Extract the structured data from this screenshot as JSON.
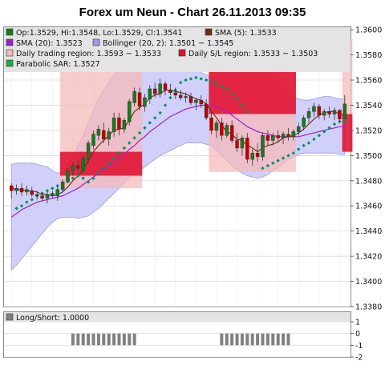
{
  "title": "Forex um Neun - Chart 26.11.2013 09:35",
  "colors": {
    "background": "#ffffff",
    "panel_bg": "#e4e4e4",
    "bollinger_fill": "#c8c8fa",
    "bollinger_line": "#9a9ae6",
    "trading_region": "#f7b8b8",
    "sl_region": "#e01030",
    "sma20": "#a020d0",
    "sma5": "#6a3010",
    "sar": "#009060",
    "bull": "#1a7a1a",
    "bear": "#c00000",
    "longshort": "#808080"
  },
  "legend": [
    {
      "text": "Op:1.3529, Hi:1.3548, Lo:1.3529, Cl:1.3541",
      "swatch": "#1a7a1a",
      "icon": "candle-swatch-icon"
    },
    {
      "text": "SMA (5): 1.3533",
      "swatch": "#6a3010",
      "icon": "sma5-swatch-icon"
    },
    {
      "text": "SMA (20): 1.3523",
      "swatch": "#a020d0",
      "icon": "sma20-swatch-icon"
    },
    {
      "text": "Bollinger (20, 2): 1.3501 ~ 1.3545",
      "swatch": "#9a9ae6",
      "icon": "bollinger-swatch-icon"
    },
    {
      "text": "Daily trading region: 1.3593 ~ 1.3533",
      "swatch": "#f7b8b8",
      "icon": "trading-region-swatch-icon"
    },
    {
      "text": "Daily S/L region: 1.3533 ~ 1.3503",
      "swatch": "#e01030",
      "icon": "sl-region-swatch-icon"
    },
    {
      "text": "Parabolic SAR: 1.3527",
      "swatch": "#22aa44",
      "icon": "sar-swatch-icon"
    }
  ],
  "lower_legend": {
    "text": "Long/Short: 1.0000",
    "swatch": "#808080"
  },
  "chart_data": {
    "type": "candlestick",
    "title": "Forex um Neun - Chart 26.11.2013 09:35",
    "price_axis": {
      "ylim": [
        1.338,
        1.3602
      ],
      "ticks": [
        "1.3600",
        "1.3580",
        "1.3560",
        "1.3540",
        "1.3520",
        "1.3500",
        "1.3480",
        "1.3460",
        "1.3440",
        "1.3420",
        "1.3400",
        "1.3380"
      ],
      "tick_values": [
        1.36,
        1.358,
        1.356,
        1.354,
        1.352,
        1.35,
        1.348,
        1.346,
        1.344,
        1.342,
        1.34,
        1.338
      ],
      "grid": true
    },
    "candles": [
      {
        "o": 1.3476,
        "h": 1.3478,
        "l": 1.3466,
        "c": 1.3472
      },
      {
        "o": 1.3472,
        "h": 1.3477,
        "l": 1.3469,
        "c": 1.3474
      },
      {
        "o": 1.3474,
        "h": 1.3478,
        "l": 1.3468,
        "c": 1.3471
      },
      {
        "o": 1.3471,
        "h": 1.3476,
        "l": 1.3468,
        "c": 1.3473
      },
      {
        "o": 1.3472,
        "h": 1.3475,
        "l": 1.3467,
        "c": 1.3469
      },
      {
        "o": 1.3469,
        "h": 1.3472,
        "l": 1.3465,
        "c": 1.3468
      },
      {
        "o": 1.3468,
        "h": 1.3471,
        "l": 1.3464,
        "c": 1.3466
      },
      {
        "o": 1.3466,
        "h": 1.3471,
        "l": 1.3462,
        "c": 1.3469
      },
      {
        "o": 1.3468,
        "h": 1.3472,
        "l": 1.3466,
        "c": 1.347
      },
      {
        "o": 1.3468,
        "h": 1.3475,
        "l": 1.3464,
        "c": 1.3473
      },
      {
        "o": 1.3473,
        "h": 1.3481,
        "l": 1.3471,
        "c": 1.3479
      },
      {
        "o": 1.3479,
        "h": 1.349,
        "l": 1.3478,
        "c": 1.3488
      },
      {
        "o": 1.3488,
        "h": 1.3495,
        "l": 1.3484,
        "c": 1.3492
      },
      {
        "o": 1.3492,
        "h": 1.3496,
        "l": 1.3488,
        "c": 1.349
      },
      {
        "o": 1.3488,
        "h": 1.35,
        "l": 1.3486,
        "c": 1.3498
      },
      {
        "o": 1.3497,
        "h": 1.3512,
        "l": 1.3494,
        "c": 1.351
      },
      {
        "o": 1.3508,
        "h": 1.352,
        "l": 1.3505,
        "c": 1.3517
      },
      {
        "o": 1.3516,
        "h": 1.3524,
        "l": 1.3512,
        "c": 1.3521
      },
      {
        "o": 1.352,
        "h": 1.3526,
        "l": 1.351,
        "c": 1.3513
      },
      {
        "o": 1.3513,
        "h": 1.3522,
        "l": 1.3508,
        "c": 1.3519
      },
      {
        "o": 1.3519,
        "h": 1.3534,
        "l": 1.3515,
        "c": 1.353
      },
      {
        "o": 1.353,
        "h": 1.3534,
        "l": 1.3516,
        "c": 1.3521
      },
      {
        "o": 1.3521,
        "h": 1.353,
        "l": 1.3518,
        "c": 1.3528
      },
      {
        "o": 1.3527,
        "h": 1.3545,
        "l": 1.3524,
        "c": 1.3543
      },
      {
        "o": 1.3542,
        "h": 1.3554,
        "l": 1.3539,
        "c": 1.3551
      },
      {
        "o": 1.355,
        "h": 1.3554,
        "l": 1.3536,
        "c": 1.3539
      },
      {
        "o": 1.3539,
        "h": 1.3549,
        "l": 1.3535,
        "c": 1.3546
      },
      {
        "o": 1.3545,
        "h": 1.3556,
        "l": 1.3541,
        "c": 1.3553
      },
      {
        "o": 1.3553,
        "h": 1.3558,
        "l": 1.3546,
        "c": 1.3549
      },
      {
        "o": 1.3549,
        "h": 1.3561,
        "l": 1.3546,
        "c": 1.3557
      },
      {
        "o": 1.3557,
        "h": 1.3559,
        "l": 1.3548,
        "c": 1.3552
      },
      {
        "o": 1.3552,
        "h": 1.3557,
        "l": 1.3548,
        "c": 1.355
      },
      {
        "o": 1.355,
        "h": 1.3554,
        "l": 1.3545,
        "c": 1.3548
      },
      {
        "o": 1.3548,
        "h": 1.3552,
        "l": 1.3544,
        "c": 1.3546
      },
      {
        "o": 1.3546,
        "h": 1.355,
        "l": 1.3542,
        "c": 1.3547
      },
      {
        "o": 1.3547,
        "h": 1.355,
        "l": 1.354,
        "c": 1.3542
      },
      {
        "o": 1.3542,
        "h": 1.3546,
        "l": 1.3536,
        "c": 1.3544
      },
      {
        "o": 1.3544,
        "h": 1.3548,
        "l": 1.3538,
        "c": 1.3541
      },
      {
        "o": 1.3541,
        "h": 1.3545,
        "l": 1.3528,
        "c": 1.353
      },
      {
        "o": 1.353,
        "h": 1.3534,
        "l": 1.3517,
        "c": 1.352
      },
      {
        "o": 1.352,
        "h": 1.3528,
        "l": 1.3514,
        "c": 1.3526
      },
      {
        "o": 1.3526,
        "h": 1.353,
        "l": 1.3512,
        "c": 1.3516
      },
      {
        "o": 1.3516,
        "h": 1.3526,
        "l": 1.3514,
        "c": 1.3524
      },
      {
        "o": 1.3524,
        "h": 1.3528,
        "l": 1.351,
        "c": 1.3512
      },
      {
        "o": 1.3512,
        "h": 1.3518,
        "l": 1.3503,
        "c": 1.3506
      },
      {
        "o": 1.3506,
        "h": 1.3516,
        "l": 1.35,
        "c": 1.3514
      },
      {
        "o": 1.3514,
        "h": 1.3518,
        "l": 1.3494,
        "c": 1.3497
      },
      {
        "o": 1.3497,
        "h": 1.3505,
        "l": 1.3492,
        "c": 1.3502
      },
      {
        "o": 1.3502,
        "h": 1.351,
        "l": 1.3495,
        "c": 1.3499
      },
      {
        "o": 1.3499,
        "h": 1.3518,
        "l": 1.3496,
        "c": 1.3516
      },
      {
        "o": 1.3516,
        "h": 1.352,
        "l": 1.3508,
        "c": 1.3512
      },
      {
        "o": 1.3512,
        "h": 1.3518,
        "l": 1.3508,
        "c": 1.3516
      },
      {
        "o": 1.3516,
        "h": 1.352,
        "l": 1.351,
        "c": 1.3514
      },
      {
        "o": 1.3514,
        "h": 1.3519,
        "l": 1.3509,
        "c": 1.3517
      },
      {
        "o": 1.3517,
        "h": 1.3522,
        "l": 1.3512,
        "c": 1.3515
      },
      {
        "o": 1.3515,
        "h": 1.3521,
        "l": 1.3512,
        "c": 1.3519
      },
      {
        "o": 1.3519,
        "h": 1.3526,
        "l": 1.3516,
        "c": 1.3523
      },
      {
        "o": 1.3523,
        "h": 1.3532,
        "l": 1.352,
        "c": 1.353
      },
      {
        "o": 1.353,
        "h": 1.3538,
        "l": 1.3526,
        "c": 1.3535
      },
      {
        "o": 1.3535,
        "h": 1.3542,
        "l": 1.3531,
        "c": 1.3539
      },
      {
        "o": 1.3539,
        "h": 1.3541,
        "l": 1.3529,
        "c": 1.3532
      },
      {
        "o": 1.3532,
        "h": 1.3537,
        "l": 1.3528,
        "c": 1.3535
      },
      {
        "o": 1.3535,
        "h": 1.3539,
        "l": 1.353,
        "c": 1.3533
      },
      {
        "o": 1.3533,
        "h": 1.3538,
        "l": 1.3528,
        "c": 1.3536
      },
      {
        "o": 1.3536,
        "h": 1.3537,
        "l": 1.3526,
        "c": 1.3529
      },
      {
        "o": 1.3529,
        "h": 1.3548,
        "l": 1.3529,
        "c": 1.3541
      }
    ],
    "sma5": [
      1.3474,
      1.3473,
      1.3473,
      1.3472,
      1.3472,
      1.3471,
      1.3469,
      1.3469,
      1.3468,
      1.3469,
      1.3471,
      1.3475,
      1.348,
      1.3484,
      1.3489,
      1.3496,
      1.3503,
      1.3508,
      1.3512,
      1.3516,
      1.352,
      1.3521,
      1.3522,
      1.3528,
      1.3535,
      1.3538,
      1.3541,
      1.3546,
      1.3548,
      1.3549,
      1.3552,
      1.3552,
      1.3551,
      1.355,
      1.3549,
      1.3547,
      1.3545,
      1.3544,
      1.3541,
      1.3535,
      1.353,
      1.3524,
      1.3519,
      1.3517,
      1.3513,
      1.3512,
      1.3508,
      1.3506,
      1.3503,
      1.3506,
      1.3508,
      1.3509,
      1.3511,
      1.3514,
      1.3515,
      1.3516,
      1.3518,
      1.3521,
      1.3525,
      1.3529,
      1.3532,
      1.3534,
      1.3535,
      1.3535,
      1.3533,
      1.3533
    ],
    "sma20": [
      1.3451,
      1.3454,
      1.3457,
      1.3459,
      1.3461,
      1.3463,
      1.3464,
      1.3465,
      1.3466,
      1.3467,
      1.3468,
      1.347,
      1.3472,
      1.3474,
      1.3477,
      1.348,
      1.3483,
      1.3486,
      1.3489,
      1.3492,
      1.3495,
      1.3498,
      1.3501,
      1.3505,
      1.3508,
      1.3512,
      1.3515,
      1.3519,
      1.3522,
      1.3525,
      1.3528,
      1.3531,
      1.3533,
      1.3535,
      1.3537,
      1.3538,
      1.3539,
      1.354,
      1.354,
      1.354,
      1.3539,
      1.3537,
      1.3535,
      1.3532,
      1.3529,
      1.3526,
      1.3523,
      1.3521,
      1.3519,
      1.3518,
      1.3517,
      1.3516,
      1.3515,
      1.3515,
      1.3515,
      1.3515,
      1.3515,
      1.3516,
      1.3517,
      1.3518,
      1.3519,
      1.352,
      1.3521,
      1.3522,
      1.3523,
      1.3523
    ],
    "bollinger_upper": [
      1.3493,
      1.3494,
      1.3494,
      1.3494,
      1.3494,
      1.3493,
      1.3492,
      1.3491,
      1.3488,
      1.3486,
      1.3487,
      1.3492,
      1.35,
      1.3508,
      1.3516,
      1.3526,
      1.3536,
      1.3545,
      1.3552,
      1.3558,
      1.3564,
      1.3568,
      1.3572,
      1.3576,
      1.3578,
      1.358,
      1.3581,
      1.3582,
      1.3582,
      1.3581,
      1.358,
      1.3578,
      1.3576,
      1.3574,
      1.3572,
      1.357,
      1.3568,
      1.3566,
      1.3564,
      1.3562,
      1.3564,
      1.3566,
      1.3567,
      1.3568,
      1.3569,
      1.357,
      1.3571,
      1.3571,
      1.357,
      1.3568,
      1.3564,
      1.356,
      1.3556,
      1.3552,
      1.3549,
      1.3547,
      1.3545,
      1.3544,
      1.3544,
      1.3545,
      1.3546,
      1.3547,
      1.3547,
      1.3546,
      1.3545,
      1.3545
    ],
    "bollinger_lower": [
      1.3409,
      1.3413,
      1.3418,
      1.3423,
      1.3428,
      1.3433,
      1.3438,
      1.3443,
      1.3447,
      1.345,
      1.3451,
      1.3451,
      1.3451,
      1.345,
      1.3451,
      1.3452,
      1.3455,
      1.3458,
      1.3462,
      1.3466,
      1.347,
      1.3474,
      1.3478,
      1.3482,
      1.3485,
      1.3488,
      1.3491,
      1.3494,
      1.3497,
      1.35,
      1.3502,
      1.3504,
      1.3506,
      1.3508,
      1.351,
      1.351,
      1.351,
      1.351,
      1.3509,
      1.3508,
      1.3504,
      1.35,
      1.3496,
      1.3492,
      1.3489,
      1.3486,
      1.3484,
      1.3483,
      1.3482,
      1.3483,
      1.3485,
      1.3488,
      1.3491,
      1.3494,
      1.3497,
      1.3499,
      1.3501,
      1.3502,
      1.3502,
      1.3502,
      1.3502,
      1.3502,
      1.3502,
      1.3502,
      1.3501,
      1.3501
    ],
    "sar": [
      null,
      1.3458,
      1.346,
      1.3463,
      1.3465,
      1.3468,
      1.347,
      1.3472,
      1.3474,
      1.3476,
      1.3478,
      1.348,
      1.3482,
      1.3484,
      1.3482,
      1.3479,
      1.3482,
      1.3486,
      1.349,
      1.3494,
      1.3498,
      1.3502,
      1.3506,
      1.351,
      1.3514,
      1.3518,
      1.3522,
      1.3526,
      1.353,
      1.3534,
      1.354,
      1.3546,
      1.3552,
      1.3558,
      1.356,
      1.3561,
      1.3562,
      1.3561,
      1.356,
      1.3559,
      1.3557,
      1.3555,
      1.3553,
      1.3549,
      1.3545,
      1.354,
      1.3535,
      null,
      null,
      1.349,
      1.3492,
      1.3494,
      1.3496,
      1.3498,
      1.35,
      1.3502,
      1.3505,
      1.3508,
      1.351,
      1.3513,
      1.3516,
      1.3519,
      1.3522,
      1.3525,
      1.3527,
      1.3527
    ],
    "regions": [
      {
        "name": "Daily trading region",
        "type": "trading",
        "start": 10,
        "end": 25,
        "y1": 1.3575,
        "y2": 1.3474
      },
      {
        "name": "Daily S/L region",
        "type": "sl",
        "start": 10,
        "end": 25,
        "y1": 1.3503,
        "y2": 1.3484
      },
      {
        "name": "Daily trading region",
        "type": "trading",
        "start": 39,
        "end": 55,
        "y1": 1.3577,
        "y2": 1.3487
      },
      {
        "name": "Daily S/L region",
        "type": "sl",
        "start": 39,
        "end": 55,
        "y1": 1.3577,
        "y2": 1.3533
      },
      {
        "name": "Daily trading region",
        "type": "trading",
        "start": 65,
        "end": 66,
        "y1": 1.3593,
        "y2": 1.3533
      },
      {
        "name": "Daily S/L region",
        "type": "sl",
        "start": 65,
        "end": 66,
        "y1": 1.3533,
        "y2": 1.3503
      }
    ],
    "longshort": {
      "ylim": [
        -2,
        1
      ],
      "ticks": [
        "1",
        "0",
        "-1",
        "-2"
      ],
      "tick_values": [
        1,
        0,
        -1,
        -2
      ],
      "bars": [
        {
          "start": 12,
          "end": 24,
          "from": -1,
          "to": 0
        },
        {
          "start": 41,
          "end": 54,
          "from": -1,
          "to": 0
        }
      ]
    }
  }
}
